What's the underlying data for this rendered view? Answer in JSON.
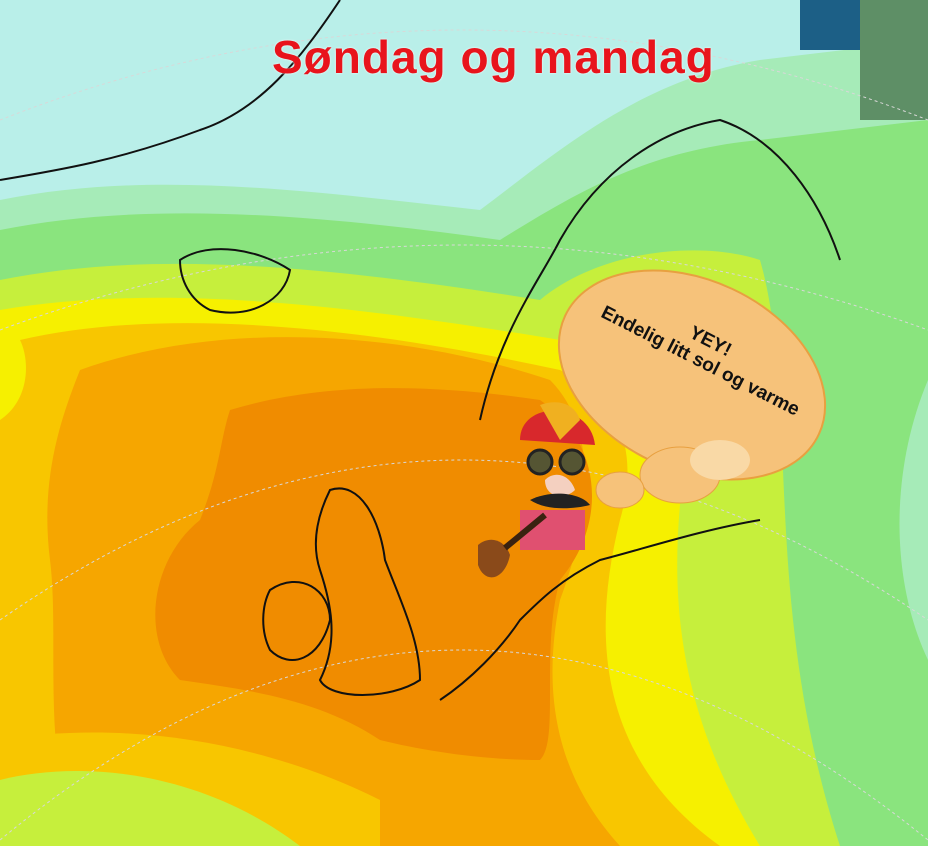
{
  "title": "Søndag og mandag",
  "speech_bubble": {
    "line1": "YEY!",
    "line2": "Endelig litt sol og varme"
  },
  "colors": {
    "title": "#e8141c",
    "cold_cyan": "#b9efe9",
    "light_green": "#a6ebb8",
    "green": "#8ae47e",
    "lime": "#c6ef3c",
    "yellow": "#f6f000",
    "gold": "#f8c600",
    "orange": "#f6a600",
    "dark_orange": "#f08c00"
  },
  "icons": [
    "cartoon-character-with-pipe-icon",
    "thought-bubble-icon"
  ]
}
